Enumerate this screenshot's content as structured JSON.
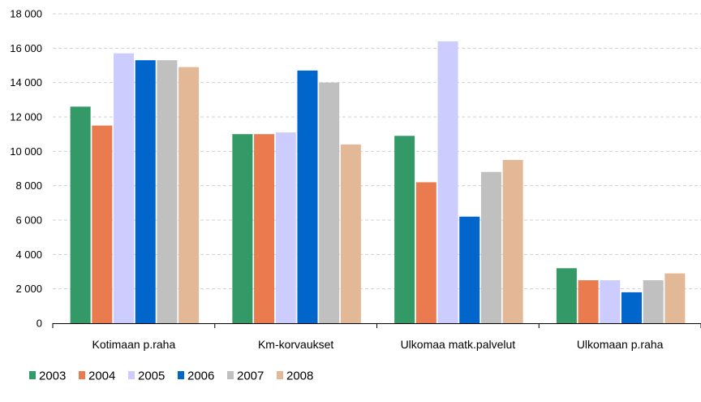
{
  "chart_data": {
    "type": "bar",
    "categories": [
      "Kotimaan p.raha",
      "Km-korvaukset",
      "Ulkomaa matk.palvelut",
      "Ulkomaan p.raha"
    ],
    "series": [
      {
        "name": "2003",
        "color": "#339966",
        "values": [
          12600,
          11000,
          10900,
          3200
        ]
      },
      {
        "name": "2004",
        "color": "#E97B4F",
        "values": [
          11500,
          11000,
          8200,
          2500
        ]
      },
      {
        "name": "2005",
        "color": "#CCCCFF",
        "values": [
          15700,
          11100,
          16400,
          2500
        ]
      },
      {
        "name": "2006",
        "color": "#0066CC",
        "values": [
          15300,
          14700,
          6200,
          1800
        ]
      },
      {
        "name": "2007",
        "color": "#C0C0C0",
        "values": [
          15300,
          14000,
          8800,
          2500
        ]
      },
      {
        "name": "2008",
        "color": "#E2B896",
        "values": [
          14900,
          10400,
          9500,
          2900
        ]
      }
    ],
    "ylim": [
      0,
      18000
    ],
    "yticks": [
      0,
      2000,
      4000,
      6000,
      8000,
      10000,
      12000,
      14000,
      16000,
      18000
    ],
    "ytick_labels": [
      "0",
      "2 000",
      "4 000",
      "6 000",
      "8 000",
      "10 000",
      "12 000",
      "14 000",
      "16 000",
      "18 000"
    ],
    "grid": true,
    "legend": "bottom-left"
  }
}
